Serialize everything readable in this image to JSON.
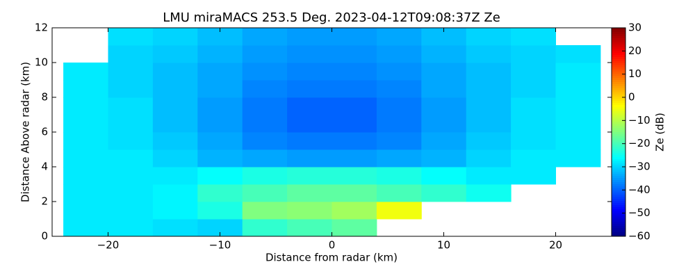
{
  "chart_data": {
    "type": "heatmap",
    "title": "LMU miraMACS 253.5 Deg. 2023-04-12T09:08:37Z  Ze",
    "x_label": "Distance from radar (km)",
    "y_label": "Distance Above radar  (km)",
    "colorbar_label": "Ze (dB)",
    "colormap": "jet",
    "xlim": [
      -25,
      25
    ],
    "ylim": [
      0,
      12
    ],
    "xticks": [
      {
        "value": -20,
        "label": "−20"
      },
      {
        "value": -10,
        "label": "−10"
      },
      0,
      10,
      20
    ],
    "yticks": [
      0,
      2,
      4,
      6,
      8,
      10,
      12
    ],
    "clim": [
      -60,
      30
    ],
    "cticks": [
      30,
      20,
      10,
      0,
      {
        "value": -10,
        "label": "−10"
      },
      {
        "value": -20,
        "label": "−20"
      },
      {
        "value": -30,
        "label": "−30"
      },
      {
        "value": -40,
        "label": "−40"
      },
      {
        "value": -50,
        "label": "−50"
      },
      {
        "value": -60,
        "label": "−60"
      }
    ],
    "xbins": [
      -24,
      -20,
      -16,
      -12,
      -8,
      -4,
      0,
      4,
      8,
      12,
      16,
      20,
      24
    ],
    "ybins": [
      0,
      1,
      2,
      3,
      4,
      5,
      6,
      7,
      8,
      9,
      10,
      11,
      12
    ],
    "values": [
      [
        -28,
        -28,
        -29,
        -30,
        -22,
        -20,
        -18,
        null,
        null,
        null,
        null,
        null
      ],
      [
        -28,
        -28,
        -27,
        -24,
        -15,
        -14,
        -12,
        -5,
        null,
        null,
        null,
        null
      ],
      [
        -28,
        -28,
        -27,
        -22,
        -20,
        -18,
        -18,
        -20,
        -22,
        -25,
        null,
        null
      ],
      [
        -28,
        -28,
        -28,
        -26,
        -24,
        -23,
        -23,
        -24,
        -26,
        -28,
        -28,
        null
      ],
      [
        -28,
        -28,
        -30,
        -33,
        -34,
        -35,
        -35,
        -34,
        -33,
        -30,
        -28,
        -28
      ],
      [
        -28,
        -29,
        -31,
        -34,
        -37,
        -38,
        -38,
        -37,
        -34,
        -31,
        -29,
        -28
      ],
      [
        -28,
        -29,
        -32,
        -35,
        -38,
        -40,
        -40,
        -38,
        -35,
        -32,
        -29,
        -28
      ],
      [
        -28,
        -29,
        -32,
        -35,
        -38,
        -40,
        -40,
        -38,
        -35,
        -32,
        -29,
        -28
      ],
      [
        -28,
        -30,
        -32,
        -34,
        -37,
        -38,
        -38,
        -37,
        -34,
        -32,
        -30,
        -28
      ],
      [
        -28,
        -30,
        -32,
        -34,
        -36,
        -37,
        -37,
        -36,
        -34,
        -32,
        -30,
        -28
      ],
      [
        null,
        -30,
        -31,
        -33,
        -35,
        -36,
        -36,
        -35,
        -33,
        -31,
        -30,
        -29
      ],
      [
        null,
        -29,
        -30,
        -32,
        -34,
        -35,
        -35,
        -34,
        -32,
        -30,
        -29,
        null
      ]
    ]
  }
}
